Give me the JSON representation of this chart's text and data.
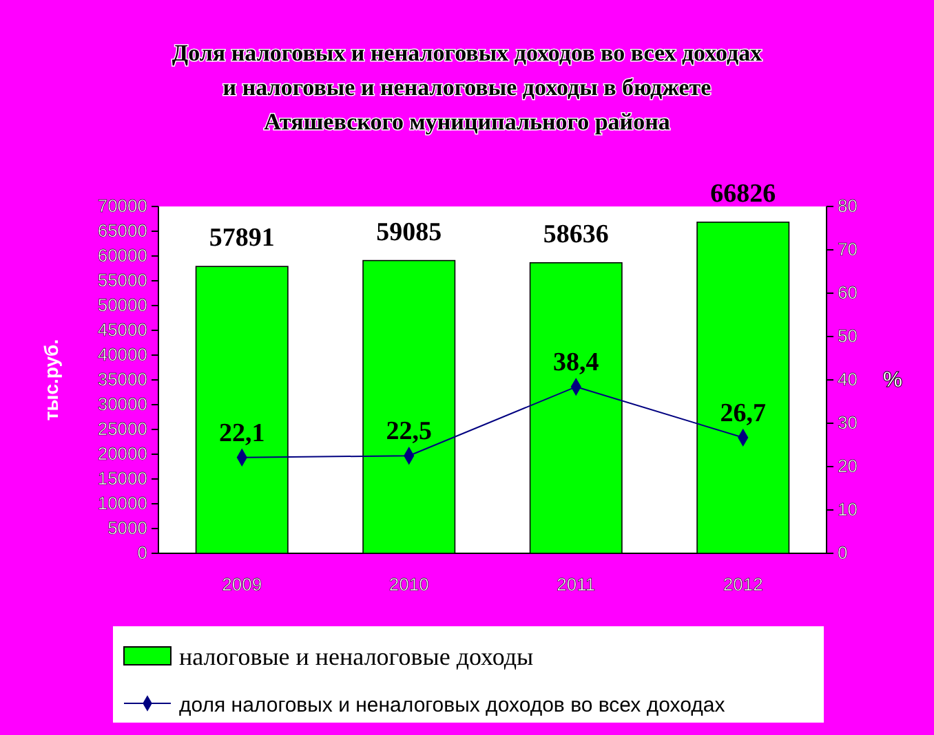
{
  "chart_data": {
    "type": "bar",
    "title": "Доля налоговых и неналоговых доходов во всех доходах и налоговые и неналоговые доходы в бюджете Атяшевского муниципального района",
    "categories": [
      "2009",
      "2010",
      "2011",
      "2012"
    ],
    "ylabel": "тыс.руб.",
    "y2label": "%",
    "ylim": [
      0,
      70000
    ],
    "yticks": [
      0,
      5000,
      10000,
      15000,
      20000,
      25000,
      30000,
      35000,
      40000,
      45000,
      50000,
      55000,
      60000,
      65000,
      70000
    ],
    "y2lim": [
      0,
      80
    ],
    "y2ticks": [
      0,
      10,
      20,
      30,
      40,
      50,
      60,
      70,
      80
    ],
    "series": [
      {
        "name": "налоговые и неналоговые доходы",
        "color": "#00ff00",
        "values": [
          57891,
          59085,
          58636,
          66826
        ]
      },
      {
        "name": "доля налоговых и неналоговых доходов во всех доходах",
        "type": "line",
        "axis": "y2",
        "color": "#000080",
        "values": [
          22.1,
          22.5,
          38.4,
          26.7
        ],
        "value_labels": [
          "22,1",
          "22,5",
          "38,4",
          "26,7"
        ],
        "marker": "diamond"
      }
    ],
    "data_labels": true,
    "legend": "bottom",
    "grid": false
  }
}
